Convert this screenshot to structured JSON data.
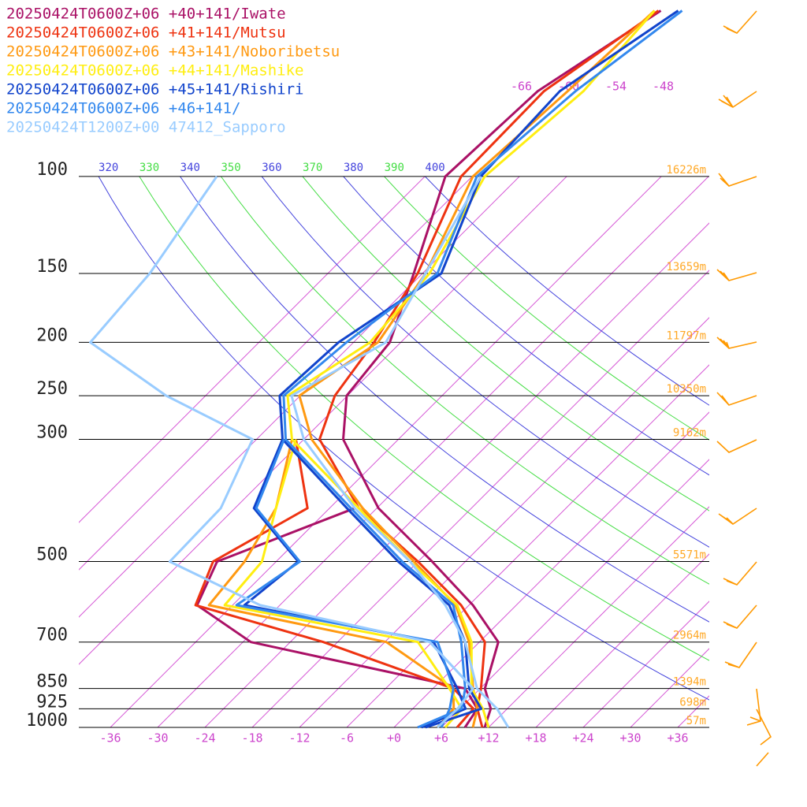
{
  "chart_data": {
    "type": "skewt",
    "pressure": [
      1000,
      925,
      850,
      700,
      600,
      500,
      400,
      300,
      250,
      200,
      150,
      100,
      70,
      50
    ],
    "series": [
      {
        "name": "20250424T0600Z+06 +40+141/Iwate",
        "color": "#aa1166",
        "temperature": [
          11.5,
          9.9,
          6.6,
          2.4,
          -5.5,
          -16.2,
          -29.8,
          -43,
          -48.1,
          -49.4,
          -55.1,
          -63.4,
          -62.5,
          -57.1
        ],
        "dewpoint": [
          9.0,
          8.2,
          4.1,
          -29,
          -40.5,
          -43.5,
          -32.8,
          null,
          null,
          null,
          null,
          null,
          null,
          null
        ]
      },
      {
        "name": "20250424T0600Z+06 +41+141/Mutsu",
        "color": "#ee3311",
        "temperature": [
          11.2,
          8.2,
          6.1,
          0.7,
          -7,
          -18,
          -32.3,
          -46,
          -49.6,
          -51.4,
          -54.6,
          -61.4,
          -61.7,
          -57.4
        ],
        "dewpoint": [
          8.0,
          7.7,
          2.6,
          -19.8,
          -40.7,
          -44,
          -38.8,
          -49,
          null,
          null,
          null,
          null,
          null,
          null
        ]
      },
      {
        "name": "20250424T0600Z+06 +43+141/Noboribetsu",
        "color": "#ff9911",
        "temperature": [
          10,
          8.2,
          5.1,
          -1.3,
          -7.7,
          -18.5,
          -31.8,
          -47,
          -54.1,
          -50.9,
          -53.6,
          -59.9,
          -58.7,
          -57.9
        ],
        "dewpoint": [
          5.5,
          5.2,
          2.6,
          -11.8,
          -39,
          -40,
          -42.8,
          -49.5,
          null,
          null,
          null,
          null,
          null,
          null
        ]
      },
      {
        "name": "20250424T0600Z+06 +44+141/Mashike",
        "color": "#ffee11",
        "temperature": [
          12,
          8.9,
          4.9,
          -1,
          -7.5,
          -19,
          -32.3,
          -49.5,
          -55.6,
          -51.9,
          -53.1,
          -58.4,
          -56.7,
          -57.9
        ],
        "dewpoint": [
          6.5,
          6.2,
          2.1,
          -7.8,
          -37,
          -37.8,
          -42.8,
          -49,
          null,
          null,
          null,
          null,
          null,
          null
        ]
      },
      {
        "name": "20250424T0600Z+06 +45+141/Rishiri",
        "color": "#1144cc",
        "temperature": [
          4,
          8.7,
          4.6,
          -1.8,
          -8.5,
          -20.5,
          -33.8,
          -50.7,
          -56.6,
          -55.9,
          -51.6,
          -58.9,
          -59.7,
          -54.9
        ],
        "dewpoint": [
          3.5,
          6.7,
          3.1,
          -5.8,
          -34.5,
          -33.2,
          -45.6,
          -50.7,
          null,
          null,
          null,
          null,
          null,
          null
        ]
      },
      {
        "name": "20250424T0600Z+06 +46+141/",
        "color": "#3388ee",
        "temperature": [
          3,
          6.2,
          4.1,
          -2.3,
          -8,
          -20,
          -33.3,
          -50.3,
          -56.1,
          -54.9,
          -52.1,
          -59.4,
          -57.7,
          -54.4
        ],
        "dewpoint": [
          6,
          4.7,
          2.6,
          -5.3,
          -35.5,
          -33,
          -45.3,
          -50.5,
          null,
          null,
          null,
          null,
          null,
          null
        ]
      },
      {
        "name": "20250424T1200Z+00 47412_Sapporo",
        "color": "#99ccff",
        "temperature": [
          14.5,
          10.7,
          5.6,
          -1.8,
          -9,
          -19,
          -32.8,
          -48,
          -55.1,
          -49.9,
          -53.6,
          -58.9,
          null,
          null
        ],
        "dewpoint": [
          5.5,
          5.7,
          5.1,
          -6.3,
          -32.5,
          -49.5,
          -49.8,
          -54.5,
          -71,
          -87.4,
          -88.6,
          -92.4,
          null,
          null
        ]
      }
    ],
    "yticks": [
      100,
      150,
      200,
      250,
      300,
      500,
      700,
      850,
      925,
      1000
    ],
    "height_labels": [
      "16226m",
      "13659m",
      "11797m",
      "10350m",
      "9162m",
      "5571m",
      "2964m",
      "1394m",
      "698m",
      "57m"
    ],
    "xticks": [
      -36,
      -30,
      -24,
      -18,
      -12,
      -6,
      {
        "value": 0,
        "label": "+0"
      },
      {
        "value": 6,
        "label": "+6"
      },
      {
        "value": 12,
        "label": "+12"
      },
      {
        "value": 18,
        "label": "+18"
      },
      {
        "value": 24,
        "label": "+24"
      },
      {
        "value": 30,
        "label": "+30"
      },
      {
        "value": 36,
        "label": "+36"
      }
    ],
    "isotherm_labels": [
      -66,
      -60,
      -54,
      -48
    ],
    "theta_labels": [
      320,
      330,
      340,
      350,
      360,
      370,
      380,
      390,
      400
    ],
    "adiabat_colors": [
      "#4444dd",
      "#44dd44"
    ],
    "isotherm_color": "#cc33cc",
    "log_scale": true
  }
}
